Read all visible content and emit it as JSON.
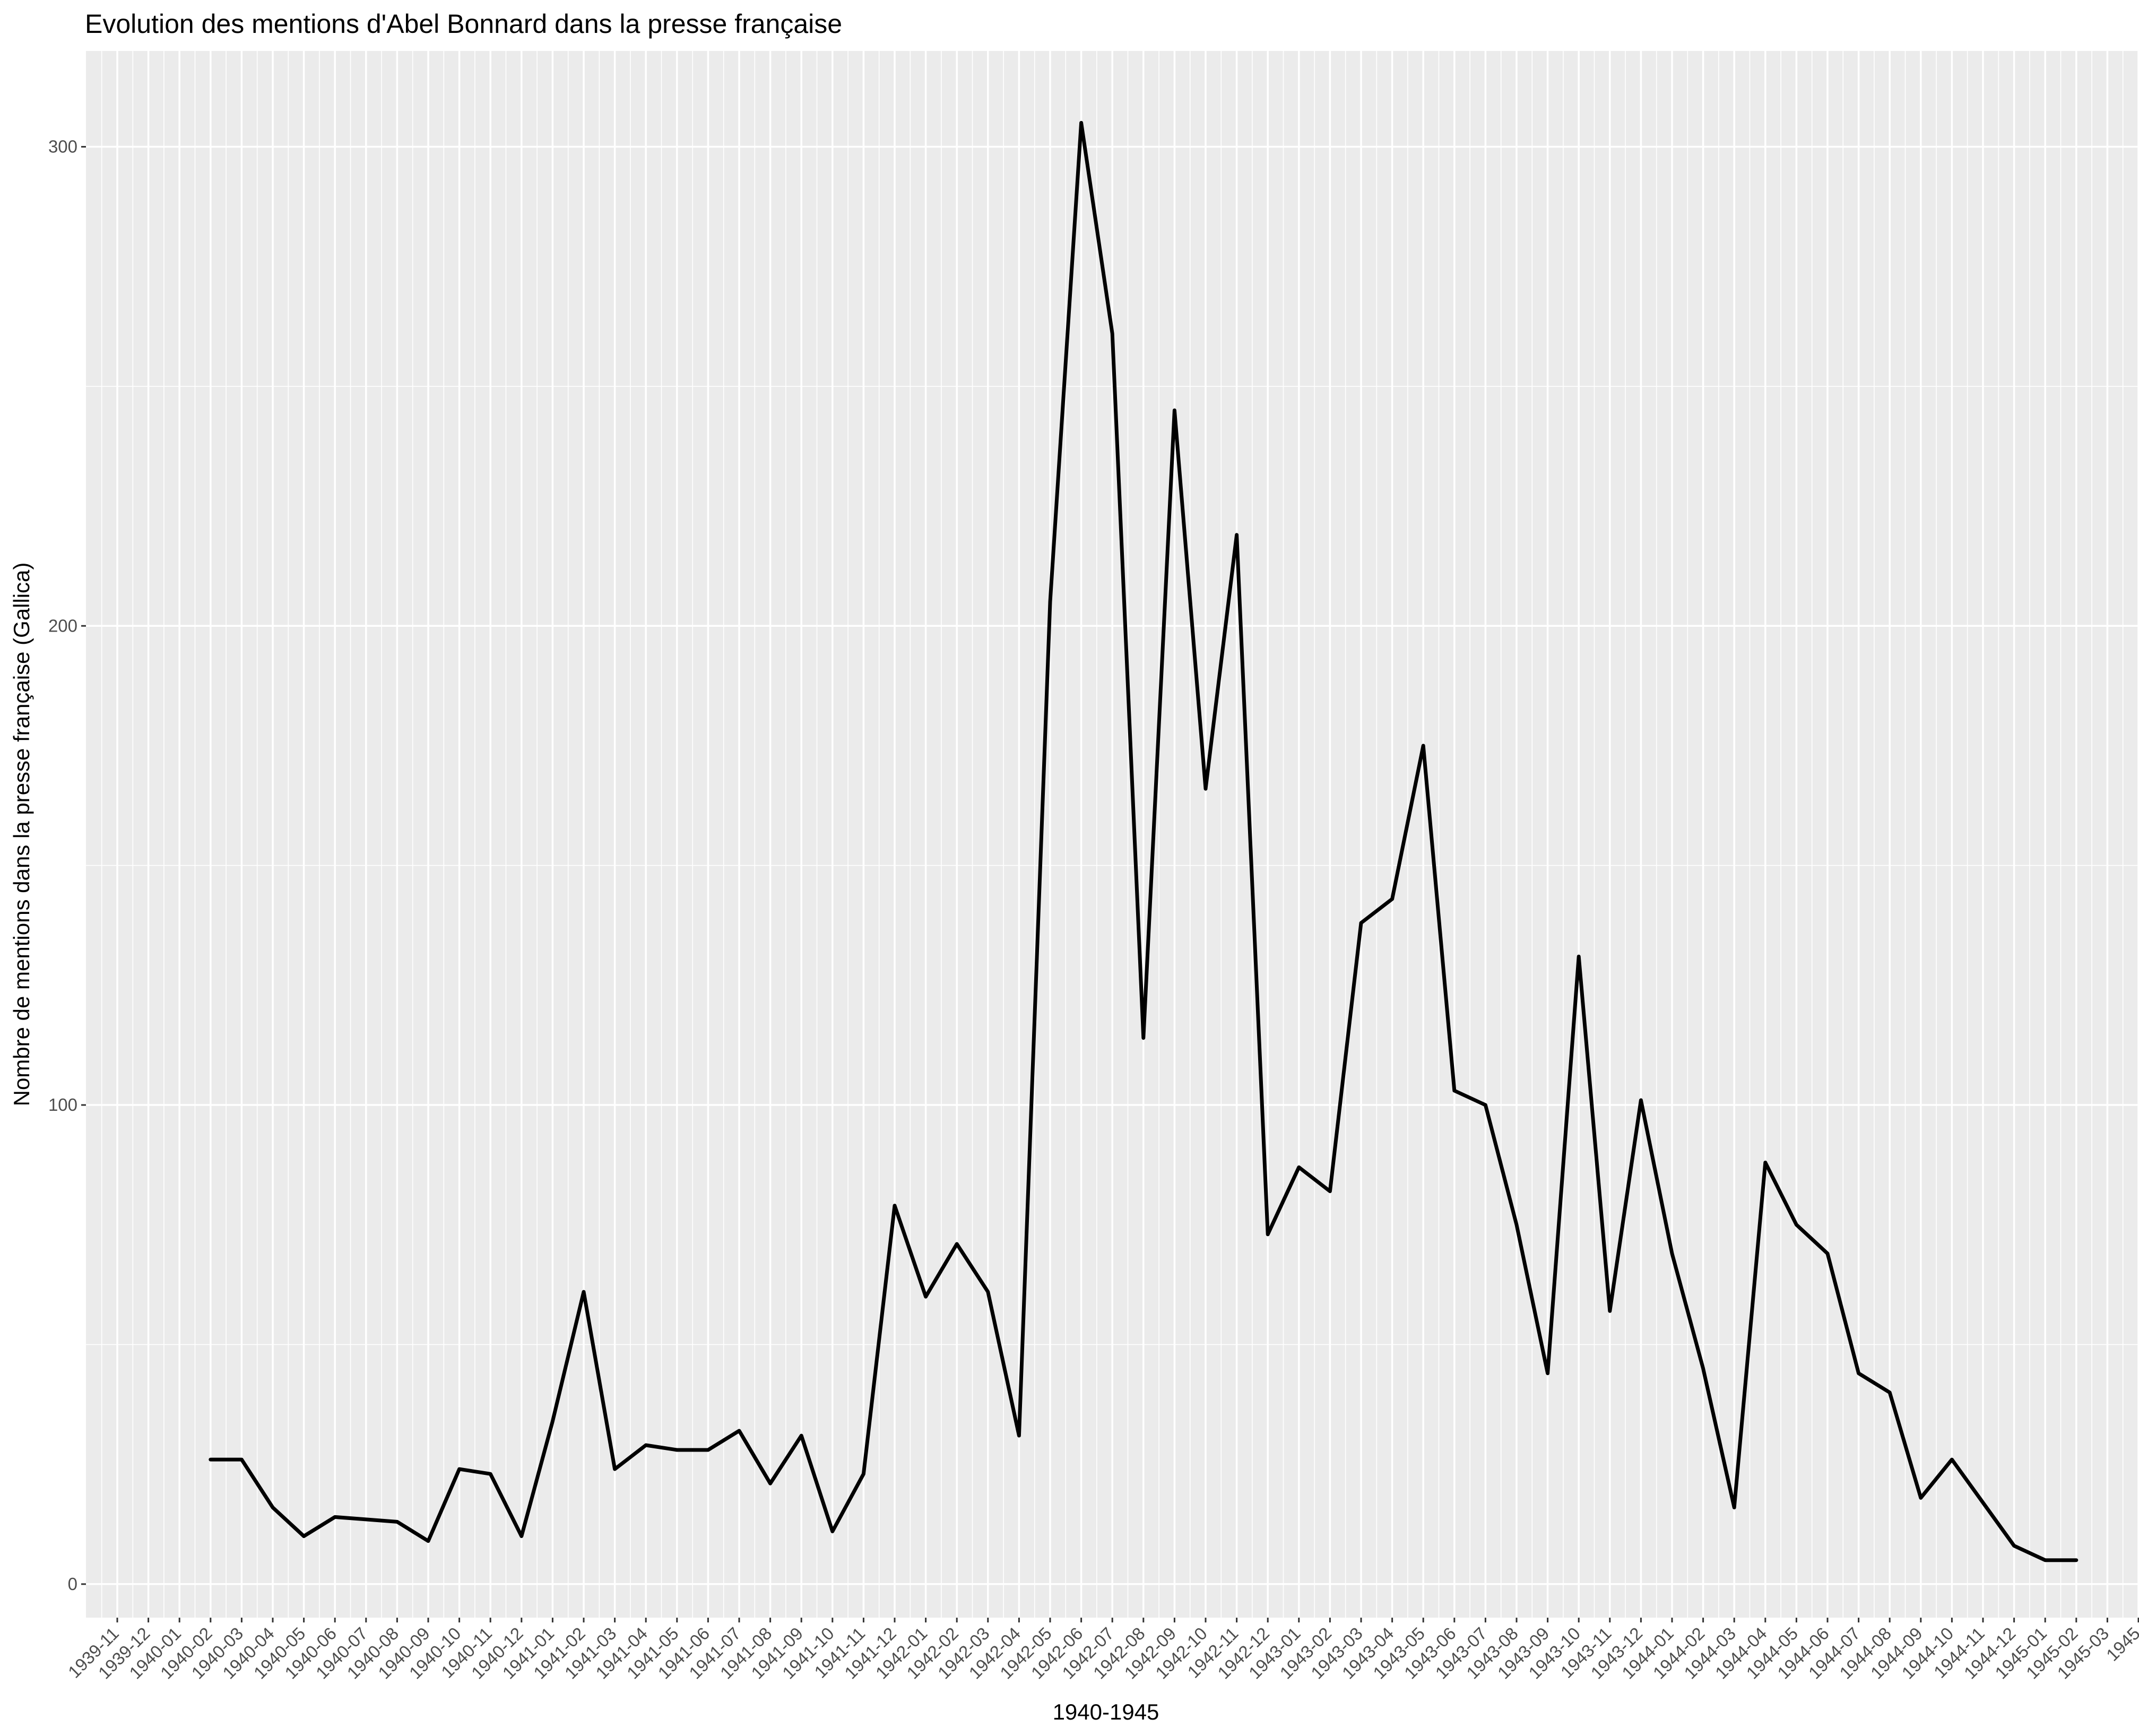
{
  "chart_data": {
    "type": "line",
    "title": "Evolution des mentions d'Abel Bonnard dans la presse française",
    "xlabel": "1940-1945",
    "ylabel": "Nombre de mentions dans la presse française (Gallica)",
    "ylim": [
      -7,
      320
    ],
    "yticks": [
      0,
      100,
      200,
      300
    ],
    "grid": true,
    "categories": [
      "1939-11",
      "1939-12",
      "1940-01",
      "1940-02",
      "1940-03",
      "1940-04",
      "1940-05",
      "1940-06",
      "1940-07",
      "1940-08",
      "1940-09",
      "1940-10",
      "1940-11",
      "1940-12",
      "1941-01",
      "1941-02",
      "1941-03",
      "1941-04",
      "1941-05",
      "1941-06",
      "1941-07",
      "1941-08",
      "1941-09",
      "1941-10",
      "1941-11",
      "1941-12",
      "1942-01",
      "1942-02",
      "1942-03",
      "1942-04",
      "1942-05",
      "1942-06",
      "1942-07",
      "1942-08",
      "1942-09",
      "1942-10",
      "1942-11",
      "1942-12",
      "1943-01",
      "1943-02",
      "1943-03",
      "1943-04",
      "1943-05",
      "1943-06",
      "1943-07",
      "1943-08",
      "1943-09",
      "1943-10",
      "1943-11",
      "1943-12",
      "1944-01",
      "1944-02",
      "1944-03",
      "1944-04",
      "1944-05",
      "1944-06",
      "1944-07",
      "1944-08",
      "1944-09",
      "1944-10",
      "1944-11",
      "1944-12",
      "1945-01",
      "1945-02",
      "1945-03",
      "1945"
    ],
    "series": [
      {
        "values": [
          null,
          null,
          null,
          26,
          26,
          16,
          10,
          14,
          13.5,
          13,
          9,
          24,
          23,
          10,
          34,
          61,
          24,
          29,
          28,
          28,
          32,
          21,
          31,
          11,
          23,
          79,
          60,
          71,
          61,
          31,
          205,
          305,
          261,
          114,
          245,
          166,
          219,
          73,
          87,
          82,
          138,
          143,
          175,
          103,
          100,
          75,
          44,
          131,
          57,
          101,
          69,
          45,
          16,
          88,
          75,
          69,
          44,
          40,
          18,
          26,
          17,
          8,
          5,
          5,
          null,
          null
        ]
      }
    ],
    "colors": {
      "line": "#000000",
      "panel": "#ebebeb",
      "grid": "#ffffff"
    }
  }
}
